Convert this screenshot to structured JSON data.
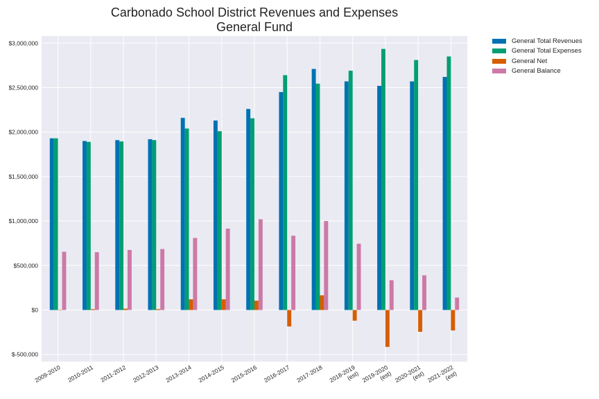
{
  "chart_data": {
    "type": "bar",
    "title": [
      "Carbonado School District Revenues and Expenses",
      "General Fund"
    ],
    "xlabel": "",
    "ylabel": "",
    "ylim": [
      -580000,
      3080000
    ],
    "yticks": [
      -500000,
      0,
      500000,
      1000000,
      1500000,
      2000000,
      2500000,
      3000000
    ],
    "ytick_labels": [
      "$-500,000",
      "$0",
      "$500,000",
      "$1,000,000",
      "$1,500,000",
      "$2,000,000",
      "$2,500,000",
      "$3,000,000"
    ],
    "grid": true,
    "legend_position": "outside-top-right",
    "categories": [
      [
        "2009-2010"
      ],
      [
        "2010-2011"
      ],
      [
        "2011-2012"
      ],
      [
        "2012-2013"
      ],
      [
        "2013-2014"
      ],
      [
        "2014-2015"
      ],
      [
        "2015-2016"
      ],
      [
        "2016-2017"
      ],
      [
        "2017-2018"
      ],
      [
        "2018-2019",
        "(est)"
      ],
      [
        "2019-2020",
        "(est)"
      ],
      [
        "2020-2021",
        "(est)"
      ],
      [
        "2021-2022",
        "(est)"
      ]
    ],
    "series": [
      {
        "name": "General Total Revenues",
        "color": "#0072B2",
        "values": [
          1930000,
          1900000,
          1910000,
          1920000,
          2160000,
          2130000,
          2260000,
          2450000,
          2710000,
          2570000,
          2520000,
          2570000,
          2620000
        ]
      },
      {
        "name": "General Total Expenses",
        "color": "#009E73",
        "values": [
          1930000,
          1890000,
          1895000,
          1910000,
          2040000,
          2010000,
          2155000,
          2640000,
          2545000,
          2690000,
          2935000,
          2810000,
          2850000
        ]
      },
      {
        "name": "General Net",
        "color": "#D55E00",
        "values": [
          0,
          10000,
          15000,
          10000,
          120000,
          120000,
          105000,
          -185000,
          165000,
          -120000,
          -415000,
          -245000,
          -230000
        ]
      },
      {
        "name": "General Balance",
        "color": "#CC79A7",
        "values": [
          655000,
          650000,
          675000,
          685000,
          810000,
          915000,
          1020000,
          835000,
          1000000,
          745000,
          335000,
          390000,
          140000
        ]
      }
    ]
  }
}
